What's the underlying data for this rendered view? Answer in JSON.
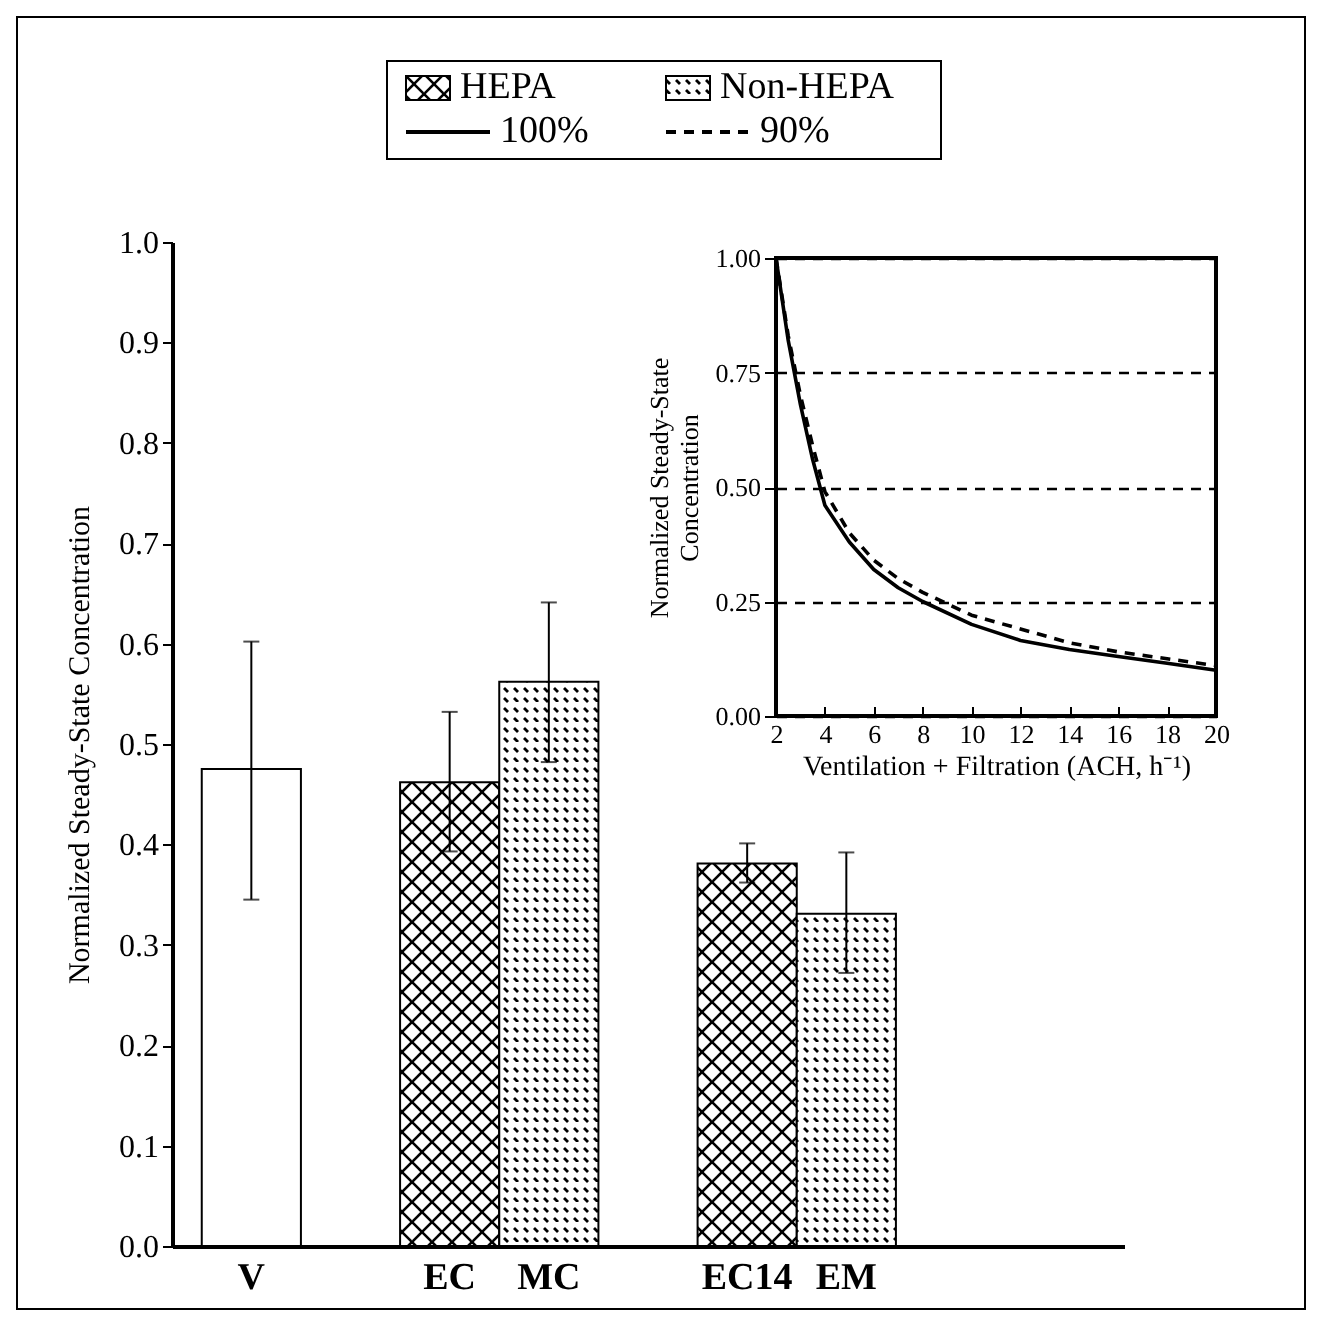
{
  "chart_data": [
    {
      "type": "bar",
      "ylabel": "Normalized Steady-State Concentration",
      "categories": [
        "V",
        null,
        "EC",
        "MC",
        null,
        "EC14",
        "EM",
        null,
        null
      ],
      "legend": "top",
      "series": [
        {
          "color": "#000000",
          "values": [
            0.475,
            null,
            null,
            null,
            null,
            null,
            null,
            null,
            null
          ],
          "errors": [
            [
              0.345,
              0.602
            ],
            null,
            null,
            null,
            null,
            null,
            null,
            null,
            null
          ]
        },
        {
          "name": "HEPA",
          "color": "#000000",
          "values": [
            null,
            null,
            0.462,
            null,
            null,
            0.381,
            null,
            null,
            null
          ],
          "errors": [
            null,
            null,
            [
              0.393,
              0.532
            ],
            null,
            null,
            [
              0.362,
              0.401
            ],
            null,
            null,
            null
          ]
        },
        {
          "name": "Non-HEPA",
          "color": "#000000",
          "values": [
            null,
            null,
            null,
            0.562,
            null,
            null,
            0.331,
            null,
            null
          ],
          "errors": [
            null,
            null,
            null,
            [
              0.482,
              0.641
            ],
            null,
            null,
            [
              0.272,
              0.392
            ],
            null,
            null
          ]
        }
      ],
      "ylim": [
        0,
        1
      ],
      "yticks": [
        {
          "value": 0,
          "label": "0.0"
        },
        {
          "value": 0.1,
          "label": "0.1"
        },
        {
          "value": 0.2,
          "label": "0.2"
        },
        {
          "value": 0.3,
          "label": "0.3"
        },
        {
          "value": 0.4,
          "label": "0.4"
        },
        {
          "value": 0.5,
          "label": "0.5"
        },
        {
          "value": 0.6,
          "label": "0.6"
        },
        {
          "value": 0.7,
          "label": "0.7"
        },
        {
          "value": 0.8,
          "label": "0.8"
        },
        {
          "value": 0.9,
          "label": "0.9"
        },
        {
          "value": 1,
          "label": "1.0"
        }
      ]
    },
    {
      "type": "line",
      "xlabel": "Ventilation + Filtration (ACH, h⁻¹)",
      "ylabel": "Normalized Steady-State\nConcentration",
      "legend": "top",
      "grid": "y",
      "x": [
        2,
        2.5,
        3,
        3.5,
        4,
        5,
        6,
        7,
        8,
        10,
        12,
        14,
        16,
        18,
        20
      ],
      "series": [
        {
          "name": "100%",
          "color": "#000000",
          "line_style": "solid",
          "values": [
            1.0,
            0.82,
            0.68,
            0.56,
            0.46,
            0.38,
            0.32,
            0.28,
            0.25,
            0.2,
            0.165,
            0.145,
            0.13,
            0.115,
            0.1
          ]
        },
        {
          "name": "90%",
          "color": "#000000",
          "line_style": "dashed",
          "values": [
            1.0,
            0.83,
            0.7,
            0.59,
            0.49,
            0.4,
            0.34,
            0.3,
            0.27,
            0.22,
            0.19,
            0.16,
            0.14,
            0.125,
            0.11
          ]
        }
      ],
      "xlim": [
        2,
        20
      ],
      "xticks": [
        2,
        4,
        6,
        8,
        10,
        12,
        14,
        16,
        18,
        20
      ],
      "ylim": [
        0,
        1
      ],
      "yticks": [
        {
          "value": 0,
          "label": "0.00"
        },
        {
          "value": 0.25,
          "label": "0.25"
        },
        {
          "value": 0.5,
          "label": "0.50"
        },
        {
          "value": 0.75,
          "label": "0.75"
        },
        {
          "value": 1,
          "label": "1.00"
        }
      ]
    }
  ]
}
